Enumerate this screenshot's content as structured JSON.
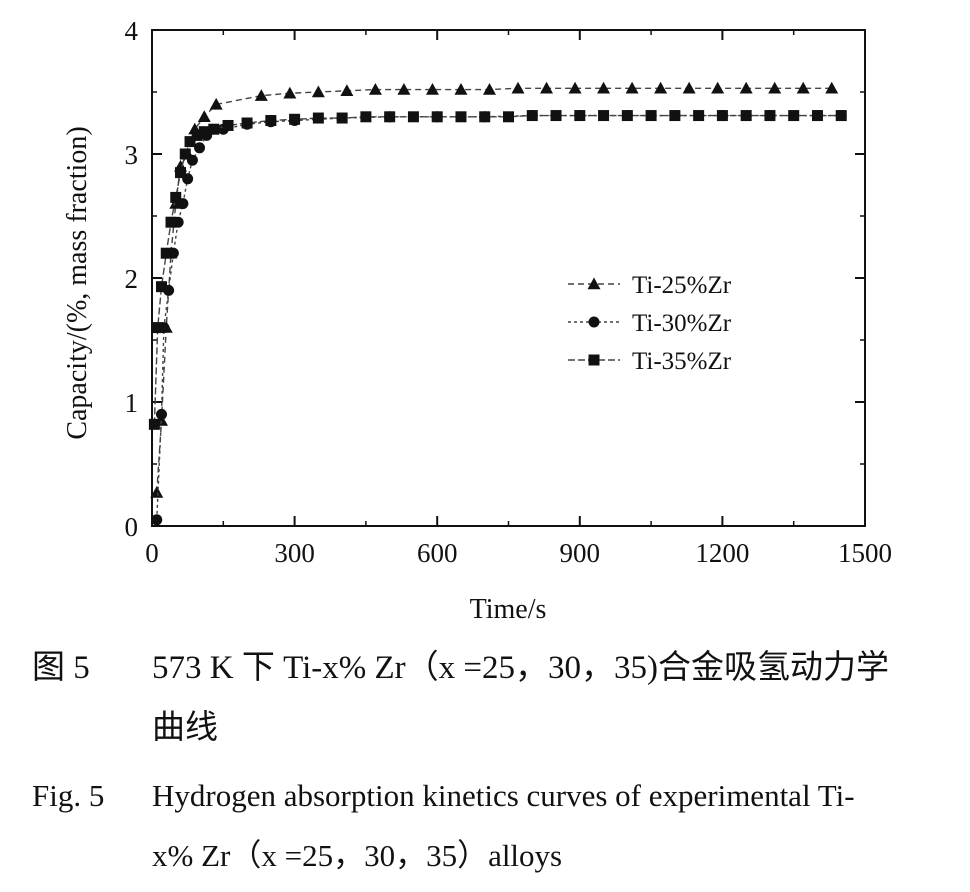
{
  "chart_data": {
    "type": "line",
    "xlabel": "Time/s",
    "ylabel": "Capacity/(%, mass fraction)",
    "xlim": [
      0,
      1500
    ],
    "ylim": [
      0,
      4
    ],
    "x_ticks": [
      "0",
      "300",
      "600",
      "900",
      "1200",
      "1500"
    ],
    "y_ticks": [
      "0",
      "1",
      "2",
      "3",
      "4"
    ],
    "grid": false,
    "legend_position": "center-right",
    "series": [
      {
        "name": "Ti-25%Zr",
        "marker": "triangle",
        "x": [
          10,
          20,
          30,
          40,
          50,
          60,
          75,
          90,
          110,
          135,
          230,
          290,
          350,
          410,
          470,
          530,
          590,
          650,
          710,
          770,
          830,
          890,
          950,
          1010,
          1070,
          1130,
          1190,
          1250,
          1310,
          1370,
          1430
        ],
        "y": [
          0.27,
          0.85,
          1.6,
          2.2,
          2.6,
          2.9,
          3.0,
          3.2,
          3.3,
          3.4,
          3.47,
          3.49,
          3.5,
          3.51,
          3.52,
          3.52,
          3.52,
          3.52,
          3.52,
          3.53,
          3.53,
          3.53,
          3.53,
          3.53,
          3.53,
          3.53,
          3.53,
          3.53,
          3.53,
          3.53,
          3.53
        ]
      },
      {
        "name": "Ti-30%Zr",
        "marker": "circle",
        "x": [
          10,
          20,
          25,
          35,
          45,
          55,
          65,
          75,
          85,
          100,
          115,
          150,
          200,
          250,
          300,
          400,
          500,
          600,
          700,
          800,
          900,
          1000,
          1100,
          1200,
          1300,
          1400,
          1450
        ],
        "y": [
          0.05,
          0.9,
          1.6,
          1.9,
          2.2,
          2.45,
          2.6,
          2.8,
          2.95,
          3.05,
          3.15,
          3.2,
          3.24,
          3.26,
          3.27,
          3.29,
          3.3,
          3.3,
          3.3,
          3.31,
          3.31,
          3.31,
          3.31,
          3.31,
          3.31,
          3.31,
          3.31
        ]
      },
      {
        "name": "Ti-35%Zr",
        "marker": "square",
        "x": [
          5,
          12,
          20,
          30,
          40,
          50,
          60,
          70,
          80,
          95,
          110,
          130,
          160,
          200,
          250,
          300,
          350,
          400,
          450,
          500,
          550,
          600,
          650,
          700,
          750,
          800,
          850,
          900,
          950,
          1000,
          1050,
          1100,
          1150,
          1200,
          1250,
          1300,
          1350,
          1400,
          1450
        ],
        "y": [
          0.82,
          1.6,
          1.93,
          2.2,
          2.45,
          2.65,
          2.85,
          3.0,
          3.1,
          3.15,
          3.18,
          3.2,
          3.23,
          3.25,
          3.27,
          3.28,
          3.29,
          3.29,
          3.3,
          3.3,
          3.3,
          3.3,
          3.3,
          3.3,
          3.3,
          3.31,
          3.31,
          3.31,
          3.31,
          3.31,
          3.31,
          3.31,
          3.31,
          3.31,
          3.31,
          3.31,
          3.31,
          3.31,
          3.31
        ]
      }
    ]
  },
  "caption": {
    "zh_label": "图 5",
    "zh_line1": "573 K 下 Ti-x% Zr（x =25，30，35)合金吸氢动力学",
    "zh_line2": "曲线",
    "en_label": "Fig. 5",
    "en_line1": "Hydrogen absorption kinetics curves of experimental Ti-",
    "en_line2": "x% Zr（x =25，30，35）alloys"
  }
}
